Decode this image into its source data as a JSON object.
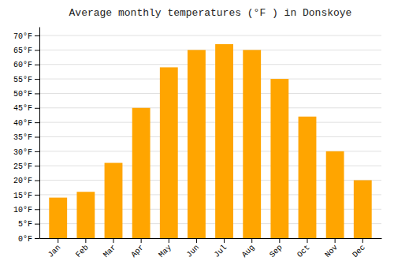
{
  "chart_data": {
    "type": "bar",
    "title": "Average monthly temperatures (°F ) in Donskoye",
    "categories": [
      "Jan",
      "Feb",
      "Mar",
      "Apr",
      "May",
      "Jun",
      "Jul",
      "Aug",
      "Sep",
      "Oct",
      "Nov",
      "Dec"
    ],
    "values": [
      14,
      16,
      26,
      45,
      59,
      65,
      67,
      65,
      55,
      42,
      30,
      20
    ],
    "color": "#FFA500",
    "ylim": [
      0,
      73
    ],
    "yticks": [
      {
        "value": 0,
        "label": "0°F"
      },
      {
        "value": 5,
        "label": "5°F"
      },
      {
        "value": 10,
        "label": "10°F"
      },
      {
        "value": 15,
        "label": "15°F"
      },
      {
        "value": 20,
        "label": "20°F"
      },
      {
        "value": 25,
        "label": "25°F"
      },
      {
        "value": 30,
        "label": "30°F"
      },
      {
        "value": 35,
        "label": "35°F"
      },
      {
        "value": 40,
        "label": "40°F"
      },
      {
        "value": 45,
        "label": "45°F"
      },
      {
        "value": 50,
        "label": "50°F"
      },
      {
        "value": 55,
        "label": "55°F"
      },
      {
        "value": 60,
        "label": "60°F"
      },
      {
        "value": 65,
        "label": "65°F"
      },
      {
        "value": 70,
        "label": "70°F"
      }
    ],
    "grid": true
  }
}
